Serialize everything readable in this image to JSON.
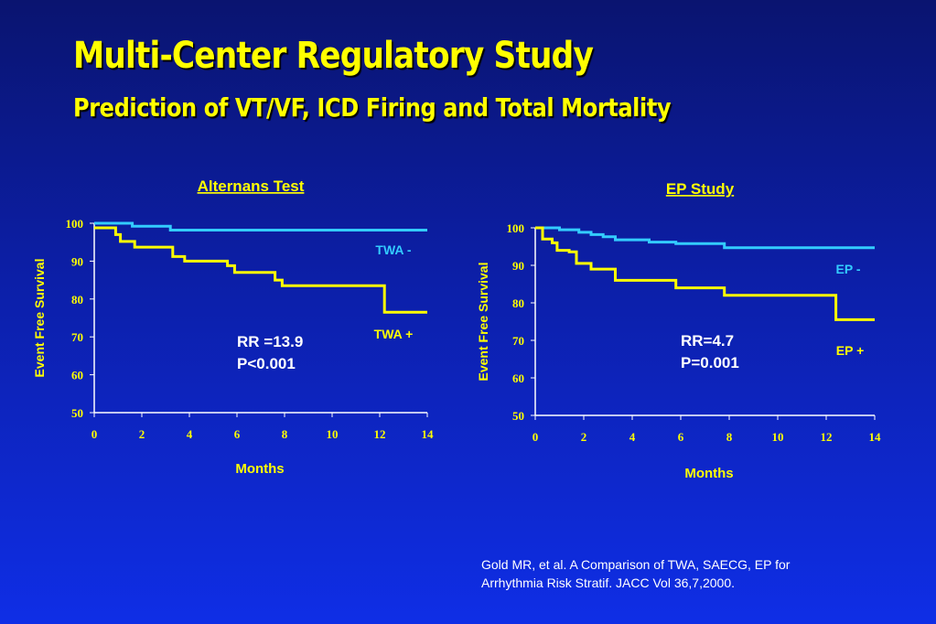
{
  "slide": {
    "title": "Multi-Center Regulatory Study",
    "subtitle": "Prediction of VT/VF, ICD Firing and Total Mortality",
    "citation_line1": "Gold MR, et al. A Comparison of TWA, SAECG, EP for",
    "citation_line2": "Arrhythmia Risk Stratif. JACC Vol 36,7,2000.",
    "colors": {
      "negative_curve": "#33ccff",
      "positive_curve": "#ffff00",
      "text": "#ffff00",
      "axis": "#ffffff"
    }
  },
  "chart_data": [
    {
      "type": "line",
      "title": "Alternans Test",
      "xlabel": "Months",
      "ylabel": "Event Free Survival",
      "xlim": [
        0,
        14
      ],
      "ylim": [
        50,
        100
      ],
      "x_ticks": [
        "0",
        "2",
        "4",
        "6",
        "8",
        "10",
        "12",
        "14"
      ],
      "y_ticks": [
        "50",
        "60",
        "70",
        "80",
        "90",
        "100"
      ],
      "stats": [
        "RR =13.9",
        "P<0.001"
      ],
      "series": [
        {
          "name": "TWA -",
          "color": "#33ccff",
          "x": [
            0,
            1.6,
            3.2,
            14
          ],
          "y": [
            100,
            99.2,
            98.2,
            98.2
          ]
        },
        {
          "name": "TWA +",
          "color": "#ffff00",
          "x": [
            0,
            0.7,
            0.9,
            1.1,
            1.7,
            3.3,
            3.8,
            5.6,
            5.9,
            7.6,
            7.9,
            12.2,
            14
          ],
          "y": [
            98.8,
            98.8,
            97,
            95.2,
            93.7,
            91.2,
            90,
            88.8,
            87,
            85,
            83.5,
            76.5,
            76.5
          ]
        }
      ]
    },
    {
      "type": "line",
      "title": "EP Study",
      "xlabel": "Months",
      "ylabel": "Event Free Survival",
      "xlim": [
        0,
        14
      ],
      "ylim": [
        50,
        100
      ],
      "x_ticks": [
        "0",
        "2",
        "4",
        "6",
        "8",
        "10",
        "12",
        "14"
      ],
      "y_ticks": [
        "50",
        "60",
        "70",
        "80",
        "90",
        "100"
      ],
      "stats": [
        "RR=4.7",
        "P=0.001"
      ],
      "series": [
        {
          "name": "EP -",
          "color": "#33ccff",
          "x": [
            0,
            1.0,
            1.8,
            2.3,
            2.8,
            3.3,
            4.7,
            5.8,
            7.8,
            14
          ],
          "y": [
            100,
            99.5,
            98.8,
            98.2,
            97.6,
            96.8,
            96.2,
            95.8,
            94.7,
            94.7
          ]
        },
        {
          "name": "EP +",
          "color": "#ffff00",
          "x": [
            0,
            0.3,
            0.7,
            0.9,
            1.4,
            1.7,
            2.3,
            3.3,
            5.8,
            7.8,
            12.4,
            14
          ],
          "y": [
            100,
            97,
            96,
            94,
            93.6,
            90.5,
            89,
            86,
            84,
            82,
            75.5,
            75.5
          ]
        }
      ]
    }
  ]
}
